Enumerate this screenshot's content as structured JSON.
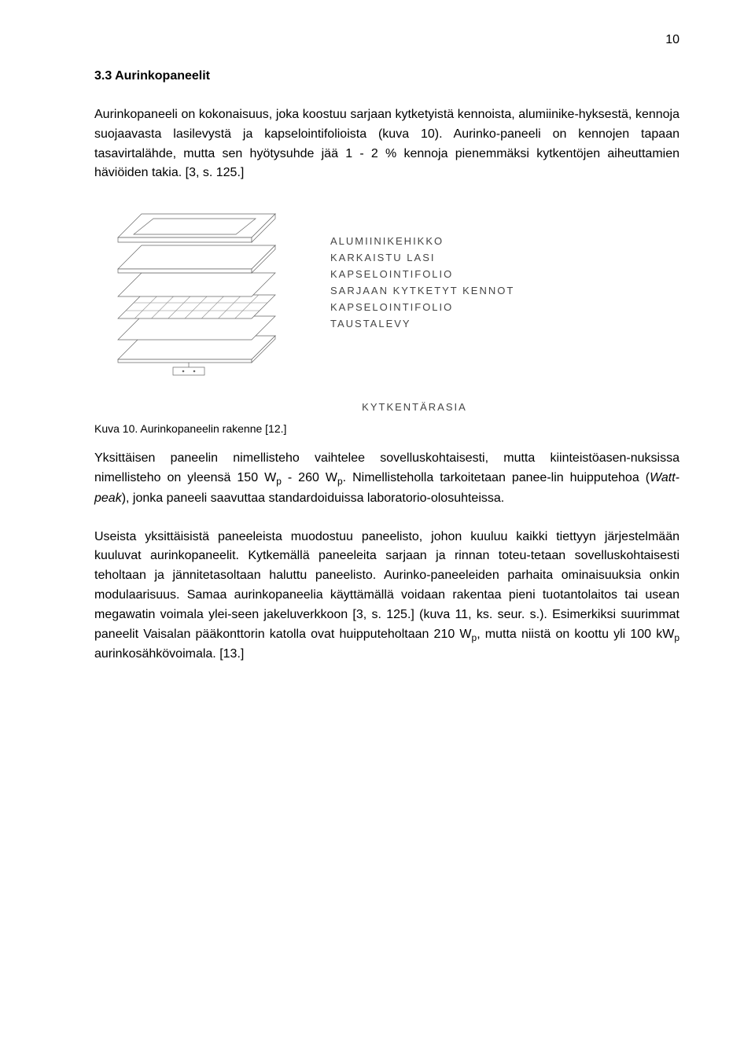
{
  "page_number": "10",
  "heading": "3.3   Aurinkopaneelit",
  "para1": "Aurinkopaneeli on kokonaisuus, joka koostuu sarjaan kytketyistä kennoista, alumiinike-hyksestä, kennoja suojaavasta lasilevystä ja kapselointifolioista (kuva 10). Aurinko-paneeli on kennojen tapaan tasavirtalähde, mutta sen hyötysuhde jää 1 - 2 % kennoja pienemmäksi kytkentöjen aiheuttamien häviöiden takia. [3, s. 125.]",
  "diagram": {
    "labels": [
      "ALUMIINIKEHIKKO",
      "KARKAISTU LASI",
      "KAPSELOINTIFOLIO",
      "SARJAAN KYTKETYT KENNOT",
      "KAPSELOINTIFOLIO",
      "TAUSTALEVY"
    ],
    "bottom_label": "KYTKENTÄRASIA",
    "stroke": "#666666",
    "grid_stroke": "#888888",
    "fill": "#ffffff",
    "line_width": 0.7
  },
  "figure_caption": "Kuva 10. Aurinkopaneelin rakenne [12.]",
  "para2_a": "Yksittäisen paneelin nimellisteho vaihtelee sovelluskohtaisesti, mutta kiinteistöasen-nuksissa nimellisteho on yleensä 150 W",
  "para2_b": " - 260 W",
  "para2_c": ". Nimellisteholla tarkoitetaan panee-lin huipputehoa (",
  "para2_italic": "Watt-peak",
  "para2_d": "), jonka paneeli saavuttaa standardoiduissa laboratorio-olosuhteissa.",
  "para3_a": "Useista yksittäisistä paneeleista muodostuu paneelisto, johon kuuluu kaikki tiettyyn järjestelmään kuuluvat aurinkopaneelit. Kytkemällä paneeleita sarjaan ja rinnan toteu-tetaan sovelluskohtaisesti teholtaan ja jännitetasoltaan haluttu paneelisto. Aurinko-paneeleiden parhaita ominaisuuksia onkin modulaarisuus. Samaa aurinkopaneelia käyttämällä voidaan rakentaa pieni tuotantolaitos tai usean megawatin voimala ylei-seen jakeluverkkoon [3, s. 125.] (kuva 11, ks. seur. s.). Esimerkiksi suurimmat paneelit Vaisalan pääkonttorin katolla ovat huipputeholtaan 210 W",
  "para3_b": ", mutta niistä on koottu yli 100 kW",
  "para3_c": " aurinkosähkövoimala. [13.]",
  "subscript_p": "p"
}
